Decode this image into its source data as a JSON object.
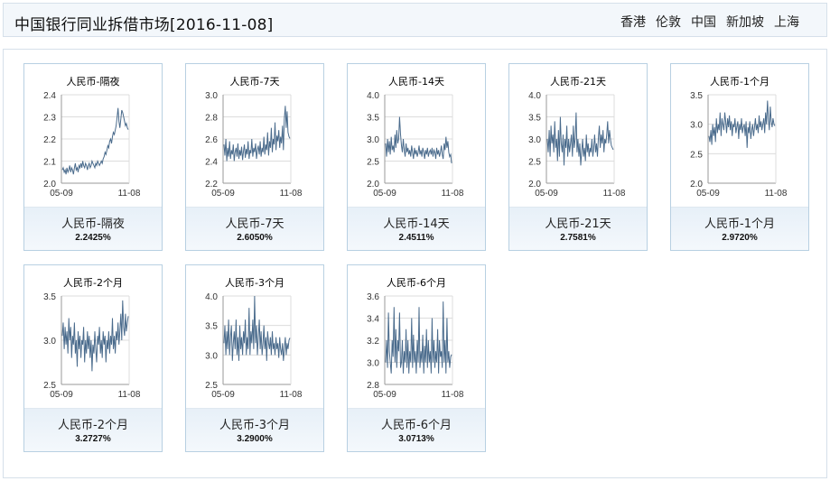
{
  "header": {
    "title": "中国银行同业拆借市场[2016-11-08]",
    "regions": [
      "香港",
      "伦敦",
      "中国",
      "新加坡",
      "上海"
    ]
  },
  "charts": [
    {
      "chart_title": "人民币-隔夜",
      "label": "人民币-隔夜",
      "value_text": "2.2425%"
    },
    {
      "chart_title": "人民币-7天",
      "label": "人民币-7天",
      "value_text": "2.6050%"
    },
    {
      "chart_title": "人民币-14天",
      "label": "人民币-14天",
      "value_text": "2.4511%"
    },
    {
      "chart_title": "人民币-21天",
      "label": "人民币-21天",
      "value_text": "2.7581%"
    },
    {
      "chart_title": "人民币-1个月",
      "label": "人民币-1个月",
      "value_text": "2.9720%"
    },
    {
      "chart_title": "人民币-2个月",
      "label": "人民币-2个月",
      "value_text": "3.2727%"
    },
    {
      "chart_title": "人民币-3个月",
      "label": "人民币-3个月",
      "value_text": "3.2900%"
    },
    {
      "chart_title": "人民币-6个月",
      "label": "人民币-6个月",
      "value_text": "3.0713%"
    }
  ],
  "chart_data": [
    {
      "type": "line",
      "title": "人民币-隔夜",
      "xlabel": "",
      "ylabel": "",
      "x_tick_labels": [
        "05-09",
        "11-08"
      ],
      "y_ticks": [
        "2.0",
        "2.1",
        "2.2",
        "2.3",
        "2.4"
      ],
      "ylim": [
        2.0,
        2.4
      ],
      "grid": true,
      "series": [
        {
          "values": [
            2.06,
            2.07,
            2.05,
            2.06,
            2.04,
            2.07,
            2.05,
            2.06,
            2.08,
            2.05,
            2.07,
            2.06,
            2.04,
            2.07,
            2.09,
            2.06,
            2.07,
            2.05,
            2.08,
            2.07,
            2.09,
            2.07,
            2.1,
            2.08,
            2.07,
            2.09,
            2.08,
            2.06,
            2.08,
            2.09,
            2.07,
            2.08,
            2.1,
            2.09,
            2.08,
            2.07,
            2.09,
            2.08,
            2.1,
            2.09,
            2.08,
            2.09,
            2.1,
            2.09,
            2.11,
            2.12,
            2.14,
            2.13,
            2.15,
            2.17,
            2.16,
            2.19,
            2.2,
            2.18,
            2.21,
            2.23,
            2.22,
            2.24,
            2.26,
            2.3,
            2.34,
            2.28,
            2.25,
            2.29,
            2.33,
            2.32,
            2.3,
            2.28,
            2.26,
            2.27,
            2.25,
            2.2425
          ]
        }
      ]
    },
    {
      "type": "line",
      "title": "人民币-7天",
      "xlabel": "",
      "ylabel": "",
      "x_tick_labels": [
        "05-09",
        "11-08"
      ],
      "y_ticks": [
        "2.2",
        "2.4",
        "2.6",
        "2.8",
        "3.0"
      ],
      "ylim": [
        2.2,
        3.0
      ],
      "grid": true,
      "series": [
        {
          "values": [
            2.55,
            2.45,
            2.6,
            2.4,
            2.52,
            2.44,
            2.58,
            2.42,
            2.5,
            2.46,
            2.55,
            2.4,
            2.48,
            2.52,
            2.44,
            2.56,
            2.42,
            2.5,
            2.45,
            2.53,
            2.41,
            2.49,
            2.55,
            2.43,
            2.51,
            2.46,
            2.58,
            2.42,
            2.5,
            2.47,
            2.6,
            2.44,
            2.52,
            2.48,
            2.56,
            2.42,
            2.5,
            2.54,
            2.46,
            2.58,
            2.44,
            2.52,
            2.48,
            2.62,
            2.46,
            2.55,
            2.5,
            2.66,
            2.45,
            2.58,
            2.52,
            2.7,
            2.48,
            2.6,
            2.55,
            2.75,
            2.5,
            2.63,
            2.58,
            2.68,
            2.52,
            2.62,
            2.56,
            2.72,
            2.5,
            2.78,
            2.9,
            2.7,
            2.85,
            2.66,
            2.62,
            2.605
          ]
        }
      ]
    },
    {
      "type": "line",
      "title": "人民币-14天",
      "xlabel": "",
      "ylabel": "",
      "x_tick_labels": [
        "05-09",
        "11-08"
      ],
      "y_ticks": [
        "2.0",
        "2.5",
        "3.0",
        "3.5",
        "4.0"
      ],
      "ylim": [
        2.0,
        4.0
      ],
      "grid": true,
      "series": [
        {
          "values": [
            2.9,
            2.6,
            3.0,
            2.7,
            2.95,
            2.65,
            3.05,
            2.75,
            2.85,
            2.7,
            3.1,
            2.8,
            3.2,
            2.9,
            3.0,
            3.5,
            3.1,
            2.85,
            2.7,
            3.0,
            2.75,
            2.6,
            2.9,
            2.7,
            2.8,
            2.65,
            2.75,
            2.6,
            2.85,
            2.7,
            2.55,
            2.8,
            2.65,
            2.75,
            2.6,
            2.7,
            2.85,
            2.65,
            2.75,
            2.6,
            2.8,
            2.7,
            2.55,
            2.75,
            2.65,
            2.8,
            2.6,
            2.7,
            2.75,
            2.65,
            2.8,
            2.6,
            2.75,
            2.7,
            2.55,
            2.8,
            2.65,
            2.75,
            2.6,
            2.7,
            2.85,
            2.65,
            2.55,
            2.9,
            2.75,
            3.05,
            2.8,
            2.95,
            2.7,
            2.6,
            2.65,
            2.4511
          ]
        }
      ]
    },
    {
      "type": "line",
      "title": "人民币-21天",
      "xlabel": "",
      "ylabel": "",
      "x_tick_labels": [
        "05-09",
        "11-08"
      ],
      "y_ticks": [
        "2.0",
        "2.5",
        "3.0",
        "3.5",
        "4.0"
      ],
      "ylim": [
        2.0,
        4.0
      ],
      "grid": true,
      "series": [
        {
          "values": [
            3.0,
            2.7,
            3.2,
            2.6,
            3.3,
            2.9,
            3.1,
            2.7,
            3.4,
            2.8,
            3.0,
            2.5,
            3.2,
            2.6,
            3.5,
            2.9,
            2.7,
            3.1,
            2.4,
            3.0,
            2.8,
            3.3,
            2.6,
            3.0,
            2.7,
            2.9,
            3.1,
            2.6,
            3.3,
            2.8,
            3.0,
            3.6,
            2.7,
            3.0,
            2.6,
            2.9,
            2.4,
            2.7,
            3.0,
            2.6,
            2.8,
            2.5,
            3.1,
            2.7,
            2.9,
            2.6,
            2.8,
            2.7,
            3.0,
            2.6,
            2.8,
            3.1,
            2.7,
            2.9,
            2.6,
            3.0,
            3.3,
            2.8,
            3.1,
            2.9,
            3.2,
            2.7,
            3.0,
            2.9,
            3.1,
            3.4,
            2.9,
            3.2,
            3.0,
            2.85,
            2.8,
            2.7581
          ]
        }
      ]
    },
    {
      "type": "line",
      "title": "人民币-1个月",
      "xlabel": "",
      "ylabel": "",
      "x_tick_labels": [
        "05-09",
        "11-08"
      ],
      "y_ticks": [
        "2.0",
        "2.5",
        "3.0",
        "3.5"
      ],
      "ylim": [
        2.0,
        3.5
      ],
      "grid": true,
      "series": [
        {
          "values": [
            2.8,
            2.7,
            2.9,
            2.65,
            3.0,
            2.8,
            2.95,
            2.7,
            3.1,
            2.85,
            3.0,
            2.9,
            3.2,
            2.8,
            3.1,
            3.0,
            2.9,
            3.2,
            3.05,
            2.85,
            3.1,
            2.95,
            3.15,
            2.9,
            3.05,
            2.8,
            3.0,
            2.95,
            3.1,
            2.85,
            2.95,
            3.05,
            2.75,
            3.0,
            2.9,
            3.1,
            2.85,
            2.95,
            3.0,
            2.8,
            3.05,
            2.6,
            2.95,
            2.85,
            3.05,
            2.75,
            2.9,
            3.0,
            2.8,
            2.95,
            3.1,
            2.9,
            3.0,
            2.85,
            3.15,
            2.95,
            3.05,
            2.9,
            3.0,
            3.1,
            2.85,
            3.2,
            3.0,
            3.4,
            3.1,
            2.9,
            3.3,
            3.05,
            2.95,
            3.1,
            3.0,
            2.972
          ]
        }
      ]
    },
    {
      "type": "line",
      "title": "人民币-2个月",
      "xlabel": "",
      "ylabel": "",
      "x_tick_labels": [
        "05-09",
        "11-08"
      ],
      "y_ticks": [
        "2.5",
        "3.0",
        "3.5"
      ],
      "ylim": [
        2.5,
        3.5
      ],
      "grid": true,
      "series": [
        {
          "values": [
            3.05,
            3.2,
            2.9,
            3.15,
            2.95,
            3.1,
            2.85,
            3.25,
            3.0,
            3.15,
            2.8,
            3.05,
            2.95,
            3.2,
            2.85,
            3.0,
            2.7,
            3.1,
            2.9,
            3.05,
            2.8,
            3.0,
            2.95,
            3.15,
            2.75,
            3.0,
            2.85,
            3.1,
            2.9,
            3.05,
            2.8,
            3.0,
            2.65,
            2.95,
            2.85,
            3.1,
            2.9,
            2.75,
            3.05,
            2.95,
            3.15,
            2.85,
            3.0,
            2.8,
            3.1,
            2.95,
            3.05,
            2.75,
            3.0,
            2.9,
            3.1,
            2.85,
            3.05,
            2.95,
            3.25,
            2.9,
            3.05,
            2.85,
            3.1,
            3.0,
            3.2,
            2.95,
            3.1,
            3.3,
            3.0,
            3.45,
            3.15,
            3.05,
            3.3,
            3.1,
            3.2,
            3.2727
          ]
        }
      ]
    },
    {
      "type": "line",
      "title": "人民币-3个月",
      "xlabel": "",
      "ylabel": "",
      "x_tick_labels": [
        "05-09",
        "11-08"
      ],
      "y_ticks": [
        "2.5",
        "3.0",
        "3.5",
        "4.0"
      ],
      "ylim": [
        2.5,
        4.0
      ],
      "grid": true,
      "series": [
        {
          "values": [
            3.2,
            3.5,
            3.0,
            3.4,
            3.1,
            3.6,
            3.0,
            3.3,
            3.5,
            2.9,
            3.2,
            3.4,
            3.1,
            3.6,
            3.0,
            3.3,
            2.9,
            3.5,
            3.1,
            3.3,
            3.0,
            3.4,
            3.2,
            3.6,
            3.0,
            3.3,
            3.1,
            3.8,
            3.0,
            3.4,
            3.2,
            3.6,
            3.1,
            4.0,
            3.2,
            3.5,
            3.0,
            3.3,
            3.6,
            3.1,
            3.4,
            3.0,
            3.2,
            3.5,
            3.1,
            3.3,
            2.9,
            3.4,
            3.2,
            3.1,
            3.3,
            3.0,
            3.4,
            3.1,
            3.2,
            3.0,
            3.3,
            3.1,
            3.2,
            2.95,
            3.3,
            3.1,
            3.0,
            3.2,
            2.9,
            3.1,
            3.3,
            3.0,
            3.2,
            3.1,
            3.25,
            3.29
          ]
        }
      ]
    },
    {
      "type": "line",
      "title": "人民币-6个月",
      "xlabel": "",
      "ylabel": "",
      "x_tick_labels": [
        "05-09",
        "11-08"
      ],
      "y_ticks": [
        "2.8",
        "3.0",
        "3.2",
        "3.4",
        "3.6"
      ],
      "ylim": [
        2.8,
        3.6
      ],
      "grid": true,
      "series": [
        {
          "values": [
            3.0,
            3.2,
            2.95,
            3.45,
            3.1,
            3.0,
            2.9,
            3.2,
            3.05,
            3.5,
            3.0,
            3.3,
            2.95,
            3.2,
            3.1,
            3.45,
            2.95,
            3.0,
            3.2,
            2.9,
            3.1,
            3.0,
            3.3,
            2.95,
            3.2,
            2.9,
            3.1,
            3.0,
            3.4,
            2.95,
            3.25,
            3.0,
            3.1,
            2.9,
            3.2,
            3.0,
            3.5,
            2.95,
            3.1,
            3.0,
            3.25,
            2.9,
            3.15,
            3.0,
            3.3,
            2.95,
            3.2,
            3.0,
            3.1,
            2.9,
            3.4,
            3.0,
            3.2,
            2.95,
            3.1,
            3.0,
            3.3,
            2.9,
            3.2,
            3.05,
            3.1,
            2.95,
            3.55,
            3.0,
            3.2,
            2.9,
            3.4,
            3.0,
            3.1,
            2.95,
            3.05,
            3.0713
          ]
        }
      ]
    }
  ]
}
